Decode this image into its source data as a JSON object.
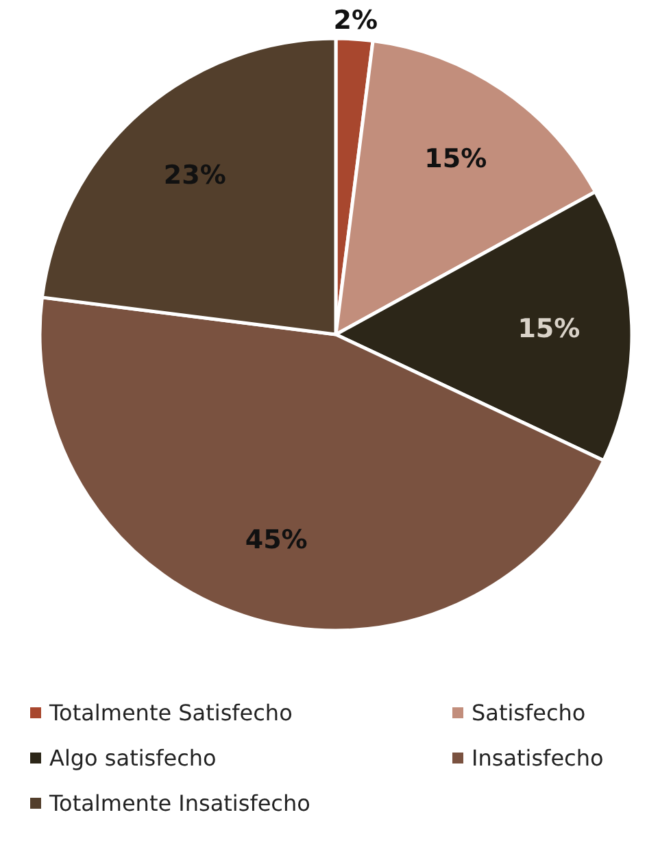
{
  "chart_data": {
    "type": "pie",
    "categories": [
      "Totalmente Satisfecho",
      "Satisfecho",
      "Algo satisfecho",
      "Insatisfecho",
      "Totalmente Insatisfecho"
    ],
    "values": [
      2,
      15,
      15,
      45,
      23
    ],
    "value_labels": [
      "2%",
      "15%",
      "15%",
      "45%",
      "23%"
    ],
    "colors": [
      "#a8472e",
      "#c28e7c",
      "#2c2618",
      "#7a5240",
      "#533f2c"
    ],
    "legend": "bottom"
  }
}
